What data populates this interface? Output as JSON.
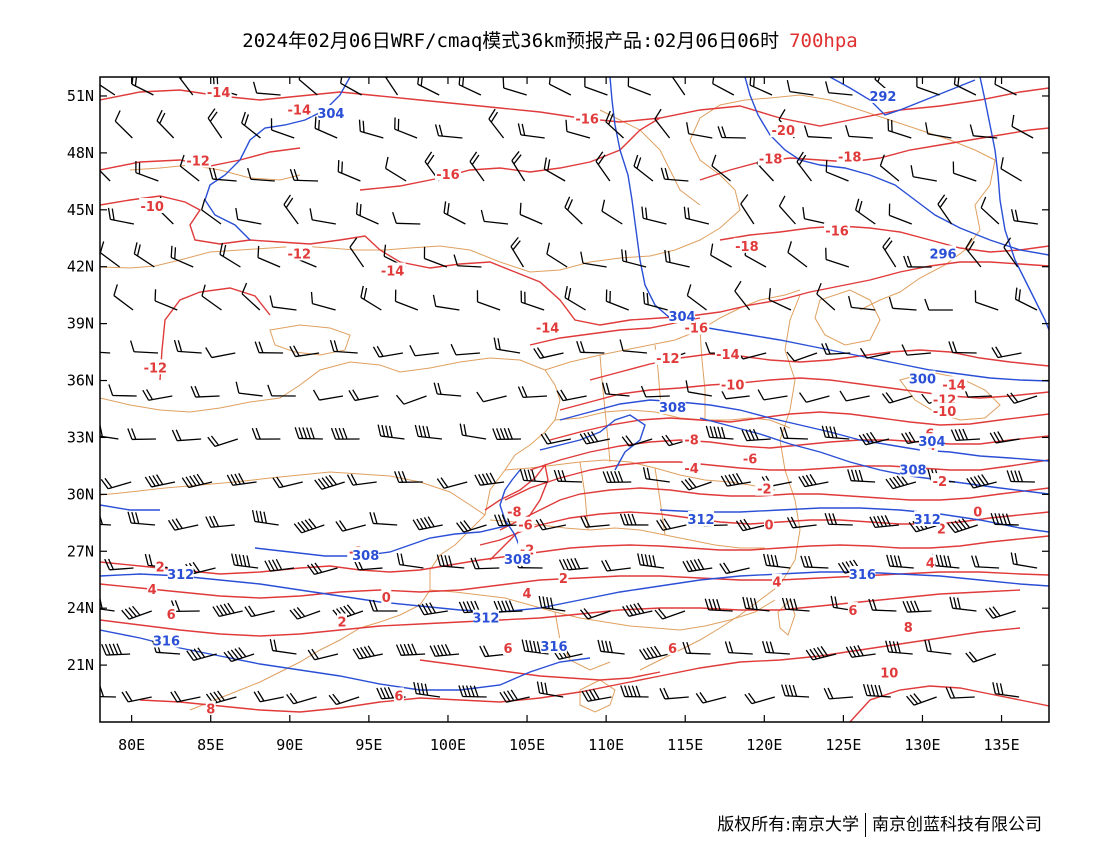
{
  "title": {
    "main": "2024年02月06日WRF/cmaq模式36km预报产品:02月06日06时",
    "level": "700hpa"
  },
  "axes": {
    "lon_ticks": [
      80,
      85,
      90,
      95,
      100,
      105,
      110,
      115,
      120,
      125,
      130,
      135
    ],
    "lat_ticks": [
      21,
      24,
      27,
      30,
      33,
      36,
      39,
      42,
      45,
      48,
      51
    ],
    "lon_range": [
      78,
      138
    ],
    "lat_range": [
      18,
      52
    ],
    "lon_suffix": "E",
    "lat_suffix": "N"
  },
  "footer": {
    "owner": "版权所有:南京大学",
    "company": "南京创蓝科技有限公司"
  },
  "colors": {
    "temperature": "#e03a3a",
    "height": "#2a4fd6",
    "boundary": "#e0a060",
    "wind": "#000000"
  },
  "temperature_labels": [
    {
      "text": "-14",
      "lon": 85.5,
      "lat": 51.2
    },
    {
      "text": "-14",
      "lon": 90.6,
      "lat": 50.3
    },
    {
      "text": "-16",
      "lon": 108.8,
      "lat": 49.8
    },
    {
      "text": "-20",
      "lon": 121.2,
      "lat": 49.2
    },
    {
      "text": "-12",
      "lon": 84.2,
      "lat": 47.6
    },
    {
      "text": "-18",
      "lon": 120.4,
      "lat": 47.7
    },
    {
      "text": "-18",
      "lon": 125.4,
      "lat": 47.8
    },
    {
      "text": "-16",
      "lon": 100.0,
      "lat": 46.9
    },
    {
      "text": "-10",
      "lon": 81.3,
      "lat": 45.2
    },
    {
      "text": "-16",
      "lon": 124.6,
      "lat": 43.9
    },
    {
      "text": "-18",
      "lon": 118.9,
      "lat": 43.1
    },
    {
      "text": "-12",
      "lon": 90.6,
      "lat": 42.7
    },
    {
      "text": "-14",
      "lon": 96.5,
      "lat": 41.8
    },
    {
      "text": "-14",
      "lon": 106.3,
      "lat": 38.8
    },
    {
      "text": "-16",
      "lon": 115.7,
      "lat": 38.8
    },
    {
      "text": "-12",
      "lon": 113.9,
      "lat": 37.2
    },
    {
      "text": "-14",
      "lon": 117.7,
      "lat": 37.4
    },
    {
      "text": "-12",
      "lon": 81.5,
      "lat": 36.7
    },
    {
      "text": "-10",
      "lon": 118.0,
      "lat": 35.8
    },
    {
      "text": "-14",
      "lon": 132.0,
      "lat": 35.8
    },
    {
      "text": "-12",
      "lon": 131.4,
      "lat": 35.0
    },
    {
      "text": "-10",
      "lon": 131.4,
      "lat": 34.4
    },
    {
      "text": "-8",
      "lon": 115.4,
      "lat": 32.9
    },
    {
      "text": "-6",
      "lon": 130.3,
      "lat": 33.2
    },
    {
      "text": "-4",
      "lon": 130.4,
      "lat": 32.6
    },
    {
      "text": "-6",
      "lon": 119.1,
      "lat": 31.9
    },
    {
      "text": "-4",
      "lon": 115.4,
      "lat": 31.4
    },
    {
      "text": "-2",
      "lon": 131.1,
      "lat": 30.7
    },
    {
      "text": "-2",
      "lon": 120.0,
      "lat": 30.3
    },
    {
      "text": "-8",
      "lon": 104.2,
      "lat": 29.1
    },
    {
      "text": "-6",
      "lon": 104.9,
      "lat": 28.4
    },
    {
      "text": "0",
      "lon": 120.3,
      "lat": 28.4
    },
    {
      "text": "0",
      "lon": 133.5,
      "lat": 29.1
    },
    {
      "text": "2",
      "lon": 131.2,
      "lat": 28.2
    },
    {
      "text": "-2",
      "lon": 105.0,
      "lat": 27.1
    },
    {
      "text": "-2",
      "lon": 94.2,
      "lat": 27.0
    },
    {
      "text": "2",
      "lon": 81.8,
      "lat": 26.2
    },
    {
      "text": "2",
      "lon": 107.3,
      "lat": 25.6
    },
    {
      "text": "4",
      "lon": 130.5,
      "lat": 26.4
    },
    {
      "text": "4",
      "lon": 120.8,
      "lat": 25.4
    },
    {
      "text": "4",
      "lon": 81.3,
      "lat": 25.0
    },
    {
      "text": "4",
      "lon": 105.0,
      "lat": 24.8
    },
    {
      "text": "0",
      "lon": 96.1,
      "lat": 24.6
    },
    {
      "text": "2",
      "lon": 93.3,
      "lat": 23.3
    },
    {
      "text": "6",
      "lon": 82.5,
      "lat": 23.7
    },
    {
      "text": "6",
      "lon": 125.6,
      "lat": 23.9
    },
    {
      "text": "6",
      "lon": 103.8,
      "lat": 21.9
    },
    {
      "text": "6",
      "lon": 114.2,
      "lat": 21.9
    },
    {
      "text": "8",
      "lon": 129.1,
      "lat": 23.0
    },
    {
      "text": "10",
      "lon": 127.9,
      "lat": 20.6
    },
    {
      "text": "6",
      "lon": 96.9,
      "lat": 19.4
    },
    {
      "text": "8",
      "lon": 85.0,
      "lat": 18.7
    }
  ],
  "height_labels": [
    {
      "text": "304",
      "lon": 92.6,
      "lat": 50.1
    },
    {
      "text": "292",
      "lon": 127.5,
      "lat": 51.0
    },
    {
      "text": "296",
      "lon": 131.3,
      "lat": 42.7
    },
    {
      "text": "304",
      "lon": 114.8,
      "lat": 39.4
    },
    {
      "text": "300",
      "lon": 130.0,
      "lat": 36.1
    },
    {
      "text": "304",
      "lon": 130.6,
      "lat": 32.8
    },
    {
      "text": "308",
      "lon": 114.2,
      "lat": 34.6
    },
    {
      "text": "308",
      "lon": 129.4,
      "lat": 31.3
    },
    {
      "text": "312",
      "lon": 116.0,
      "lat": 28.7
    },
    {
      "text": "312",
      "lon": 130.3,
      "lat": 28.7
    },
    {
      "text": "308",
      "lon": 94.8,
      "lat": 26.8
    },
    {
      "text": "308",
      "lon": 104.4,
      "lat": 26.6
    },
    {
      "text": "312",
      "lon": 83.1,
      "lat": 25.8
    },
    {
      "text": "312",
      "lon": 102.4,
      "lat": 23.5
    },
    {
      "text": "316",
      "lon": 126.2,
      "lat": 25.8
    },
    {
      "text": "316",
      "lon": 82.2,
      "lat": 22.3
    },
    {
      "text": "316",
      "lon": 106.7,
      "lat": 22.0
    }
  ]
}
